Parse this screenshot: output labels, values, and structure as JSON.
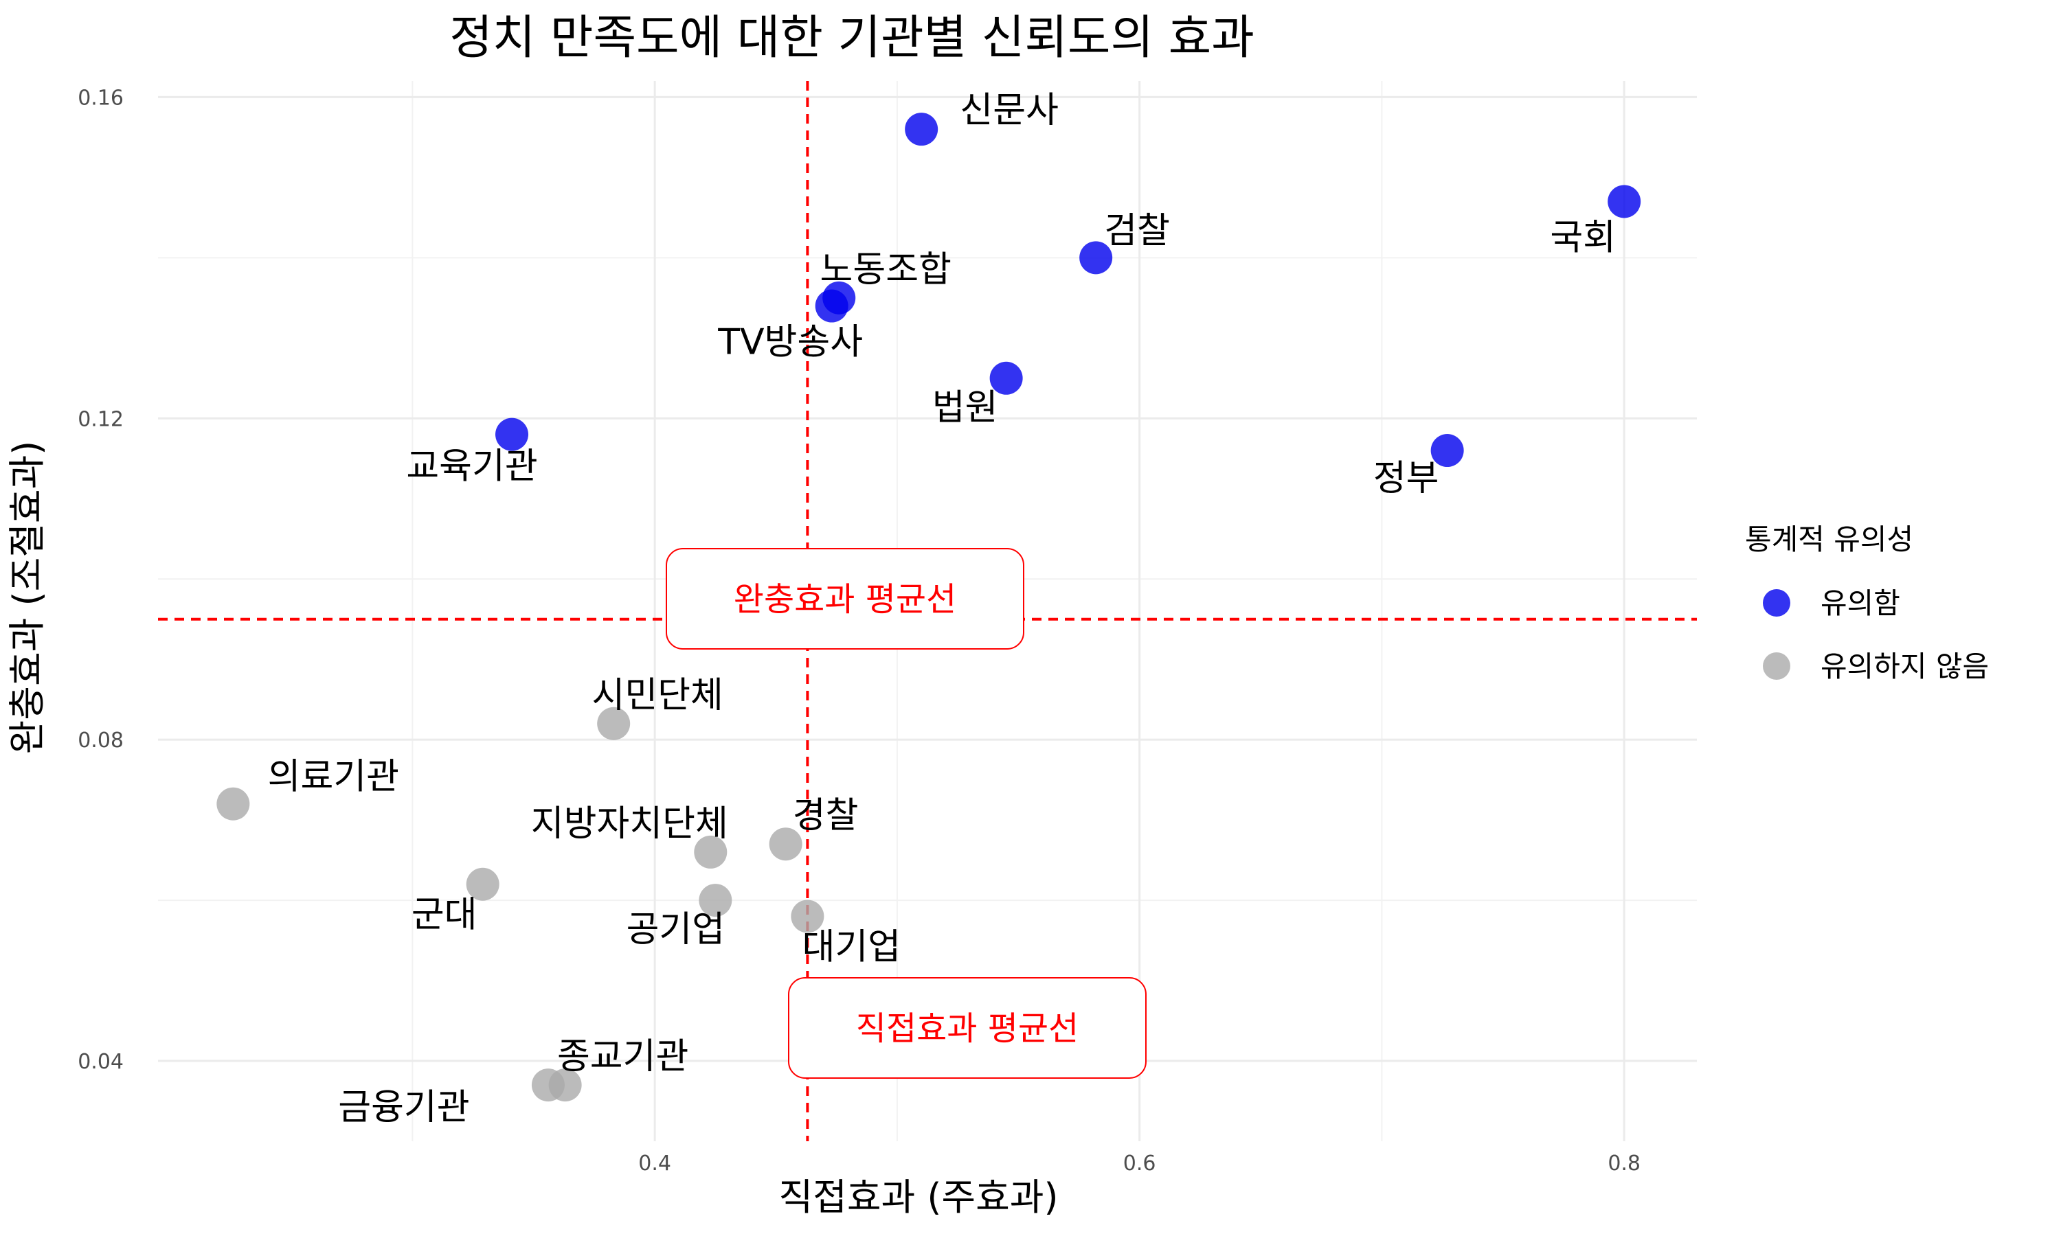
{
  "chart_data": {
    "type": "scatter",
    "title": "정치 만족도에 대한 기관별 신뢰도의 효과",
    "xlabel": "직접효과 (주효과)",
    "ylabel": "완충효과 (조절효과)",
    "xlim": [
      0.195,
      0.83
    ],
    "ylim": [
      0.03,
      0.162
    ],
    "x_ticks": [
      0.4,
      0.6,
      0.8
    ],
    "x_tick_labels": [
      "0.4",
      "0.6",
      "0.8"
    ],
    "y_ticks": [
      0.04,
      0.08,
      0.12,
      0.16
    ],
    "y_tick_labels": [
      "0.04",
      "0.08",
      "0.12",
      "0.16"
    ],
    "grid": true,
    "legend": {
      "title": "통계적 유의성",
      "position": "right",
      "items": [
        {
          "label": "유의함",
          "color": "#0000ee"
        },
        {
          "label": "유의하지 않음",
          "color": "#aaaaaa"
        }
      ]
    },
    "reference_lines": {
      "vertical": {
        "x": 0.463,
        "label": "직접효과 평균선",
        "color": "#ff0000"
      },
      "horizontal": {
        "y": 0.095,
        "label": "완충효과 평균선",
        "color": "#ff0000"
      }
    },
    "points": [
      {
        "label": "신문사",
        "x": 0.51,
        "y": 0.156,
        "group": "유의함"
      },
      {
        "label": "국회",
        "x": 0.8,
        "y": 0.147,
        "group": "유의함"
      },
      {
        "label": "검찰",
        "x": 0.582,
        "y": 0.14,
        "group": "유의함"
      },
      {
        "label": "노동조합",
        "x": 0.476,
        "y": 0.135,
        "group": "유의함"
      },
      {
        "label": "TV방송사",
        "x": 0.473,
        "y": 0.134,
        "group": "유의함"
      },
      {
        "label": "법원",
        "x": 0.545,
        "y": 0.125,
        "group": "유의함"
      },
      {
        "label": "교육기관",
        "x": 0.341,
        "y": 0.118,
        "group": "유의함"
      },
      {
        "label": "정부",
        "x": 0.727,
        "y": 0.116,
        "group": "유의함"
      },
      {
        "label": "시민단체",
        "x": 0.383,
        "y": 0.082,
        "group": "유의하지 않음"
      },
      {
        "label": "의료기관",
        "x": 0.226,
        "y": 0.072,
        "group": "유의하지 않음"
      },
      {
        "label": "지방자치단체",
        "x": 0.423,
        "y": 0.066,
        "group": "유의하지 않음"
      },
      {
        "label": "경찰",
        "x": 0.454,
        "y": 0.067,
        "group": "유의하지 않음"
      },
      {
        "label": "군대",
        "x": 0.329,
        "y": 0.062,
        "group": "유의하지 않음"
      },
      {
        "label": "공기업",
        "x": 0.425,
        "y": 0.06,
        "group": "유의하지 않음"
      },
      {
        "label": "대기업",
        "x": 0.463,
        "y": 0.058,
        "group": "유의하지 않음"
      },
      {
        "label": "종교기관",
        "x": 0.363,
        "y": 0.037,
        "group": "유의하지 않음"
      },
      {
        "label": "금융기관",
        "x": 0.356,
        "y": 0.037,
        "group": "유의하지 않음"
      }
    ]
  }
}
